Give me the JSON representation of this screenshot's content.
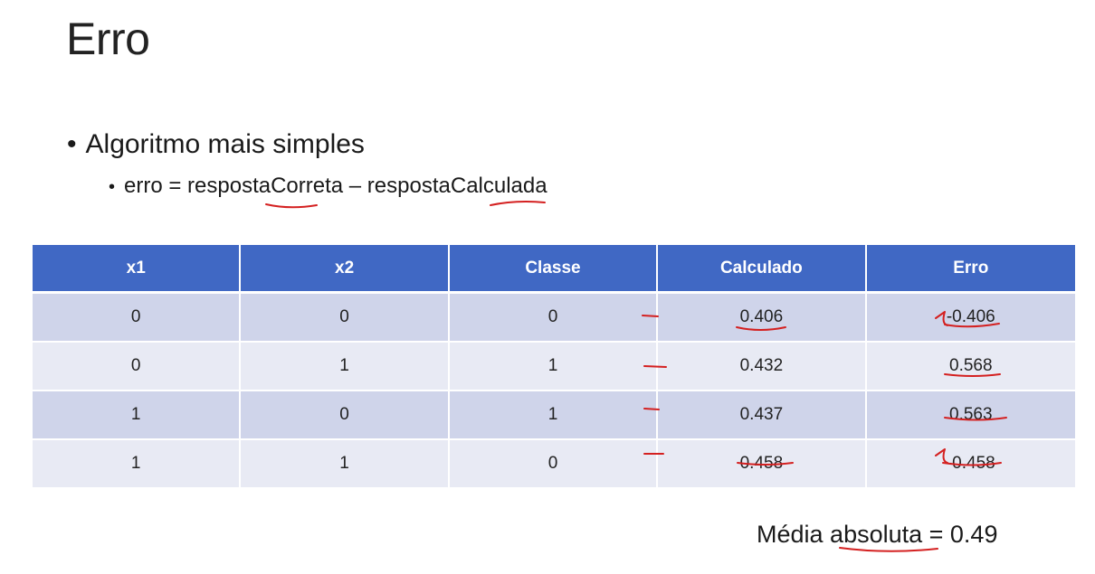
{
  "slide": {
    "title": "Erro",
    "bullet_main": "Algoritmo mais simples",
    "bullet_sub": "erro = respostaCorreta – respostaCalculada"
  },
  "table": {
    "headers": [
      "x1",
      "x2",
      "Classe",
      "Calculado",
      "Erro"
    ],
    "rows": [
      [
        "0",
        "0",
        "0",
        "0.406",
        "-0.406"
      ],
      [
        "0",
        "1",
        "1",
        "0.432",
        "0.568"
      ],
      [
        "1",
        "0",
        "1",
        "0.437",
        "0.563"
      ],
      [
        "1",
        "1",
        "0",
        "0.458",
        "-0.458"
      ]
    ]
  },
  "footer": {
    "label_prefix": "Média ",
    "label_underlined": "absoluta",
    "label_suffix": " = 0.49"
  },
  "colors": {
    "header_bg": "#4068c4",
    "row_dark": "#cfd4ea",
    "row_light": "#e8eaf4",
    "annotation_ink": "#d42020"
  }
}
